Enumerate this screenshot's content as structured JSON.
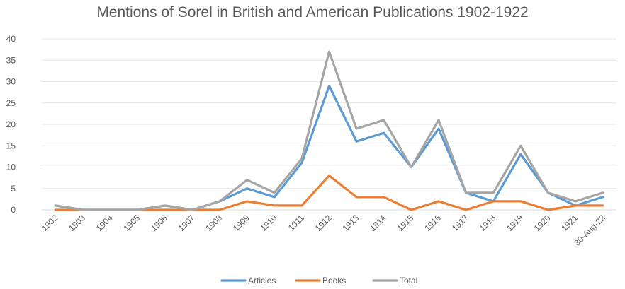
{
  "chart_data": {
    "type": "line",
    "title": "Mentions of Sorel in British and American Publications 1902-1922",
    "xlabel": "",
    "ylabel": "",
    "categories": [
      "1902",
      "1903",
      "1904",
      "1905",
      "1906",
      "1907",
      "1908",
      "1909",
      "1910",
      "1911",
      "1912",
      "1913",
      "1914",
      "1915",
      "1916",
      "1917",
      "1918",
      "1919",
      "1920",
      "1921",
      "30-Aug-22"
    ],
    "ylim": [
      0,
      40
    ],
    "yticks": [
      "0",
      "5",
      "10",
      "15",
      "20",
      "25",
      "30",
      "35",
      "40"
    ],
    "grid": "horizontal",
    "legend_position": "bottom",
    "series": [
      {
        "name": "Articles",
        "color": "#5B9BD5",
        "values": [
          1,
          0,
          0,
          0,
          1,
          0,
          2,
          5,
          3,
          11,
          29,
          16,
          18,
          10,
          19,
          4,
          2,
          13,
          4,
          1,
          3
        ]
      },
      {
        "name": "Books",
        "color": "#ED7D31",
        "values": [
          0,
          0,
          0,
          0,
          0,
          0,
          0,
          2,
          1,
          1,
          8,
          3,
          3,
          0,
          2,
          0,
          2,
          2,
          0,
          1,
          1
        ]
      },
      {
        "name": "Total",
        "color": "#A5A5A5",
        "values": [
          1,
          0,
          0,
          0,
          1,
          0,
          2,
          7,
          4,
          12,
          37,
          19,
          21,
          10,
          21,
          4,
          4,
          15,
          4,
          2,
          4
        ]
      }
    ]
  }
}
